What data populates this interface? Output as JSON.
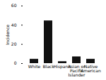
{
  "chart_data": {
    "type": "bar",
    "categories": [
      "White",
      "Black",
      "Hispanic",
      "Asian or\nPacific\nIslander",
      "Native\nAmerican"
    ],
    "values": [
      4.5,
      44.5,
      2.0,
      7.0,
      4.5
    ],
    "color": "#111111",
    "ylabel": "Incidence",
    "ylim": [
      0,
      60
    ],
    "yticks": [
      0,
      20,
      40,
      60
    ]
  }
}
